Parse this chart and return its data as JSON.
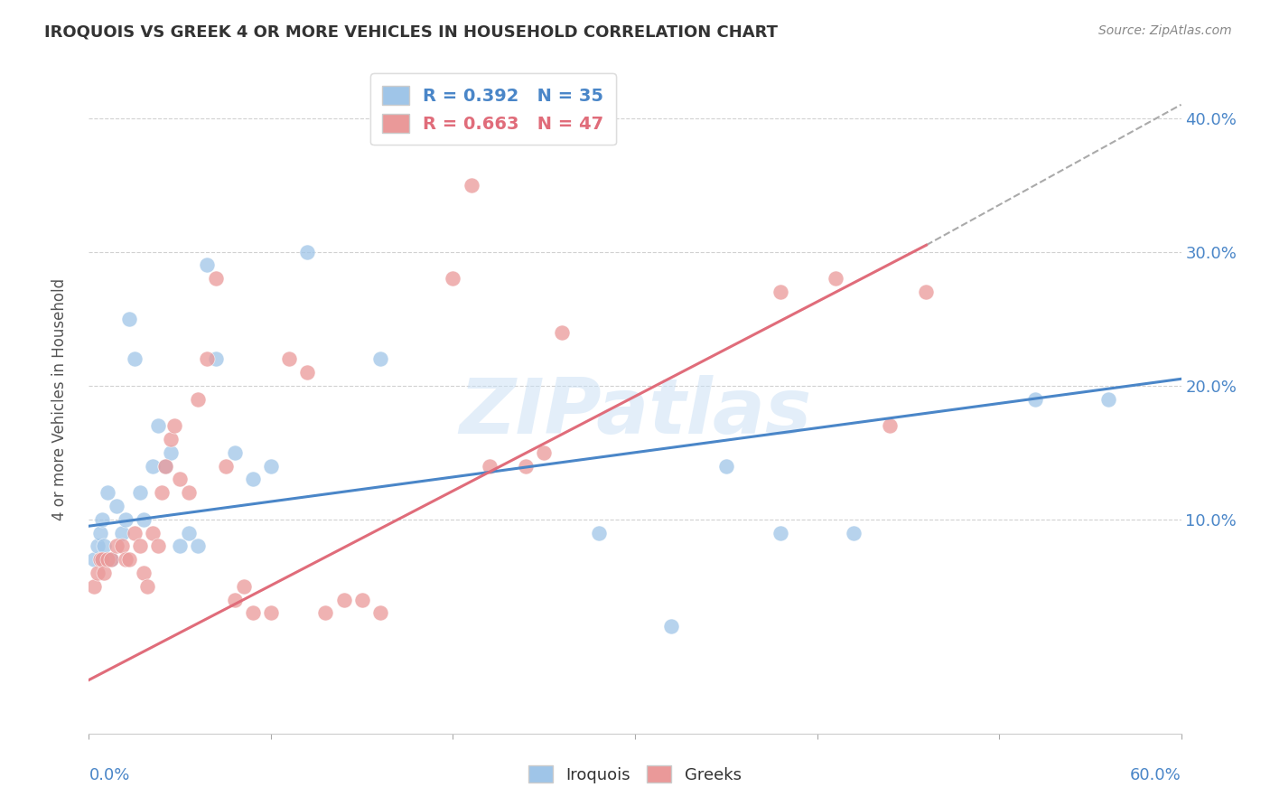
{
  "title": "IROQUOIS VS GREEK 4 OR MORE VEHICLES IN HOUSEHOLD CORRELATION CHART",
  "source": "Source: ZipAtlas.com",
  "ylabel": "4 or more Vehicles in Household",
  "ytick_labels": [
    "40.0%",
    "30.0%",
    "20.0%",
    "10.0%"
  ],
  "ytick_values": [
    0.4,
    0.3,
    0.2,
    0.1
  ],
  "xlim": [
    0.0,
    0.6
  ],
  "ylim": [
    -0.06,
    0.44
  ],
  "color_blue": "#9fc5e8",
  "color_pink": "#ea9999",
  "color_blue_line": "#4a86c8",
  "color_pink_line": "#e06c7a",
  "watermark": "ZIPatlas",
  "legend_label1": "R = 0.392   N = 35",
  "legend_label2": "R = 0.663   N = 47",
  "legend_label_bottom1": "Iroquois",
  "legend_label_bottom2": "Greeks",
  "iroquois_x": [
    0.003,
    0.005,
    0.006,
    0.007,
    0.008,
    0.01,
    0.012,
    0.015,
    0.018,
    0.02,
    0.022,
    0.025,
    0.028,
    0.03,
    0.035,
    0.038,
    0.042,
    0.045,
    0.05,
    0.055,
    0.06,
    0.065,
    0.07,
    0.08,
    0.09,
    0.1,
    0.12,
    0.16,
    0.28,
    0.32,
    0.35,
    0.38,
    0.42,
    0.52,
    0.56
  ],
  "iroquois_y": [
    0.07,
    0.08,
    0.09,
    0.1,
    0.08,
    0.12,
    0.07,
    0.11,
    0.09,
    0.1,
    0.25,
    0.22,
    0.12,
    0.1,
    0.14,
    0.17,
    0.14,
    0.15,
    0.08,
    0.09,
    0.08,
    0.29,
    0.22,
    0.15,
    0.13,
    0.14,
    0.3,
    0.22,
    0.09,
    0.02,
    0.14,
    0.09,
    0.09,
    0.19,
    0.19
  ],
  "greeks_x": [
    0.003,
    0.005,
    0.006,
    0.007,
    0.008,
    0.01,
    0.012,
    0.015,
    0.018,
    0.02,
    0.022,
    0.025,
    0.028,
    0.03,
    0.032,
    0.035,
    0.038,
    0.04,
    0.042,
    0.045,
    0.047,
    0.05,
    0.055,
    0.06,
    0.065,
    0.07,
    0.075,
    0.08,
    0.085,
    0.09,
    0.1,
    0.11,
    0.12,
    0.13,
    0.14,
    0.15,
    0.16,
    0.2,
    0.21,
    0.22,
    0.24,
    0.25,
    0.26,
    0.38,
    0.41,
    0.44,
    0.46
  ],
  "greeks_y": [
    0.05,
    0.06,
    0.07,
    0.07,
    0.06,
    0.07,
    0.07,
    0.08,
    0.08,
    0.07,
    0.07,
    0.09,
    0.08,
    0.06,
    0.05,
    0.09,
    0.08,
    0.12,
    0.14,
    0.16,
    0.17,
    0.13,
    0.12,
    0.19,
    0.22,
    0.28,
    0.14,
    0.04,
    0.05,
    0.03,
    0.03,
    0.22,
    0.21,
    0.03,
    0.04,
    0.04,
    0.03,
    0.28,
    0.35,
    0.14,
    0.14,
    0.15,
    0.24,
    0.27,
    0.28,
    0.17,
    0.27
  ],
  "blue_line_x0": 0.0,
  "blue_line_y0": 0.095,
  "blue_line_x1": 0.6,
  "blue_line_y1": 0.205,
  "pink_line_x0": 0.0,
  "pink_line_y0": -0.02,
  "pink_line_x1": 0.46,
  "pink_line_y1": 0.305,
  "dash_line_x0": 0.46,
  "dash_line_y0": 0.305,
  "dash_line_x1": 0.6,
  "dash_line_y1": 0.41
}
